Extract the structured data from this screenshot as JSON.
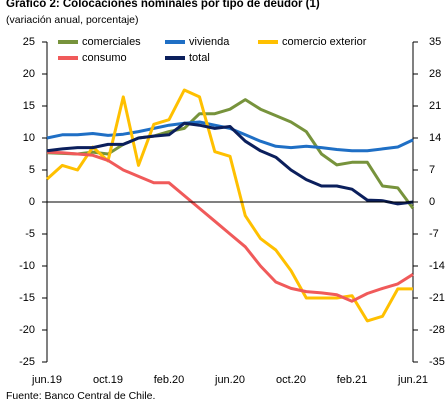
{
  "chart_data": {
    "type": "line",
    "title": "Gráfico 2: Colocaciones nominales por tipo de deudor (1)",
    "subtitle": "(variación anual, porcentaje)",
    "source": "Fuente: Banco Central de Chile.",
    "categories": [
      "jun.19",
      null,
      null,
      null,
      "oct.19",
      null,
      null,
      null,
      "feb.20",
      null,
      null,
      null,
      "jun.20",
      null,
      null,
      null,
      "oct.20",
      null,
      null,
      null,
      "feb.21",
      null,
      null,
      null,
      "jun.21"
    ],
    "ylim": [
      -25,
      25
    ],
    "yticks": [
      -25,
      -20,
      -15,
      -10,
      -5,
      0,
      5,
      10,
      15,
      20,
      25
    ],
    "y2lim": [
      -35,
      35
    ],
    "y2ticks": [
      -35,
      -28,
      -21,
      -14,
      -7,
      0,
      7,
      14,
      21,
      28,
      35
    ],
    "series": [
      {
        "name": "comerciales",
        "color": "#77933c",
        "values": [
          7.7,
          7.6,
          7.5,
          7.8,
          7.5,
          9,
          10,
          10.3,
          11,
          11.5,
          13.8,
          13.8,
          14.5,
          16,
          14.5,
          13.5,
          12.5,
          11,
          7.5,
          5.8,
          6.2,
          6.2,
          2.5,
          2.2,
          -1
        ]
      },
      {
        "name": "vivienda",
        "color": "#1f6fc5",
        "values": [
          10,
          10.5,
          10.5,
          10.7,
          10.4,
          10.6,
          11,
          11.5,
          12,
          12.3,
          12.5,
          12,
          11.5,
          10.5,
          9.5,
          8.7,
          8.5,
          8.7,
          8.5,
          8.2,
          8,
          8,
          8.3,
          8.6,
          9.7
        ]
      },
      {
        "name": "comercio exterior",
        "color": "#ffc000",
        "axis": "y2",
        "values": [
          5,
          8,
          7,
          12,
          9,
          23,
          8,
          17,
          18,
          24.5,
          23,
          11,
          10,
          -3,
          -8,
          -10.5,
          -15,
          -21,
          -21,
          -21,
          -20.5,
          -26,
          -25,
          -19,
          -19
        ]
      },
      {
        "name": "consumo",
        "color": "#f05a5a",
        "values": [
          7.8,
          7.7,
          7.5,
          7.3,
          6.5,
          5,
          4,
          3,
          3,
          1,
          -1,
          -3,
          -5,
          -7,
          -10,
          -12.5,
          -13.5,
          -14,
          -14.2,
          -14.5,
          -15.5,
          -14.3,
          -13.5,
          -12.8,
          -11.3
        ]
      },
      {
        "name": "total",
        "color": "#0b1f5c",
        "values": [
          8,
          8.3,
          8.5,
          8.5,
          9,
          9,
          10,
          10.3,
          10.5,
          12.3,
          12,
          11.5,
          11.8,
          9.5,
          8,
          7,
          5,
          3.5,
          2.5,
          2.5,
          2,
          0.3,
          0.2,
          -0.3,
          0
        ]
      }
    ]
  }
}
